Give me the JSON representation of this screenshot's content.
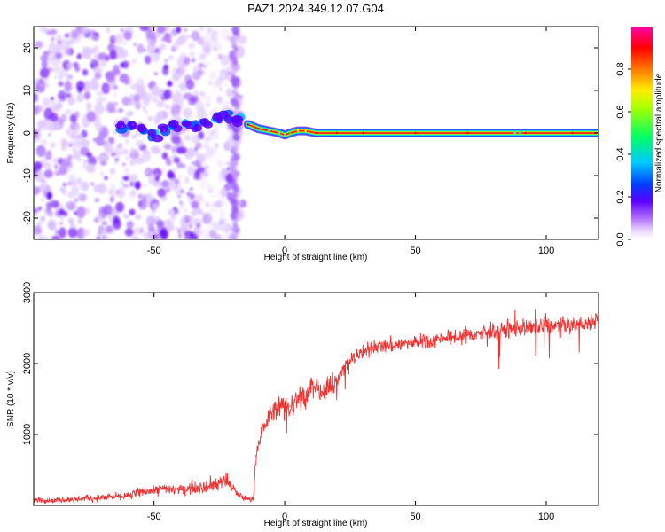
{
  "title": "PAZ1.2024.349.12.07.G04",
  "chart_data": [
    {
      "type": "heatmap",
      "xlabel": "Height of straight line (km)",
      "ylabel": "Frequency (Hz)",
      "xlim": [
        -96,
        120
      ],
      "ylim": [
        -25,
        25
      ],
      "xticks": [
        -50,
        0,
        50,
        100
      ],
      "xtick_labels": [
        "-50",
        "0",
        "50",
        "100"
      ],
      "yticks": [
        -20,
        -10,
        0,
        10,
        20
      ],
      "ytick_labels": [
        "-20",
        "-10",
        "0",
        "10",
        "20"
      ],
      "colorbar": {
        "label": "Normalized spectral amplitude",
        "ticks": [
          0.0,
          0.2,
          0.4,
          0.6,
          0.8
        ],
        "tick_labels": [
          "0.0",
          "0.2",
          "0.4",
          "0.6",
          "0.8"
        ],
        "colormap": "rainbow",
        "colors": [
          "#ffffff",
          "#e6d2ff",
          "#9b30ff",
          "#5a00ff",
          "#0050ff",
          "#00ffff",
          "#00ff00",
          "#ffff00",
          "#ff0000",
          "#ff00aa"
        ]
      },
      "signal_trace": {
        "x": [
          -62,
          -58,
          -54,
          -50,
          -46,
          -42,
          -38,
          -34,
          -30,
          -26,
          -22,
          -18,
          -14,
          -10,
          -6,
          -2,
          0,
          2,
          5,
          8,
          12,
          20,
          30,
          50,
          70,
          88,
          90,
          92,
          110,
          120
        ],
        "y": [
          1.5,
          2.0,
          1.0,
          -1.0,
          0.5,
          1.5,
          2.5,
          2.0,
          2.5,
          3.5,
          4.0,
          3.0,
          2.0,
          1.0,
          0.5,
          0.0,
          -0.5,
          0.0,
          0.5,
          0.5,
          0.0,
          0.0,
          0.0,
          0.0,
          0.0,
          0.0,
          0.0,
          0.0,
          0.0,
          0.0
        ],
        "amplitude": [
          0.25,
          0.25,
          0.3,
          0.3,
          0.25,
          0.3,
          0.3,
          0.3,
          0.35,
          0.35,
          0.35,
          0.3,
          0.35,
          0.45,
          0.5,
          0.55,
          0.6,
          0.65,
          0.75,
          0.8,
          0.85,
          0.9,
          0.9,
          0.9,
          0.9,
          0.6,
          0.6,
          0.9,
          0.9,
          0.9
        ]
      }
    },
    {
      "type": "line",
      "xlabel": "Height of straight line (km)",
      "ylabel": "SNR (10 * v/v)",
      "xlim": [
        -96,
        120
      ],
      "ylim": [
        0,
        3000
      ],
      "xticks": [
        -50,
        0,
        50,
        100
      ],
      "xtick_labels": [
        "-50",
        "0",
        "50",
        "100"
      ],
      "yticks": [
        1000,
        2000,
        3000
      ],
      "ytick_labels": [
        "1000",
        "2000",
        "3000"
      ],
      "line_color": "#ee3333",
      "series": [
        {
          "x": [
            -96,
            -90,
            -80,
            -70,
            -60,
            -55,
            -50,
            -45,
            -40,
            -35,
            -30,
            -25,
            -22,
            -20,
            -18,
            -16,
            -14,
            -12,
            -11,
            -10,
            -8,
            -6,
            -4,
            -2,
            0,
            2,
            4,
            6,
            8,
            10,
            12,
            14,
            16,
            18,
            20,
            22,
            25,
            30,
            35,
            40,
            50,
            60,
            70,
            80,
            90,
            100,
            110,
            120
          ],
          "y": [
            80,
            70,
            90,
            110,
            140,
            190,
            210,
            240,
            220,
            260,
            280,
            320,
            360,
            240,
            150,
            120,
            90,
            80,
            700,
            900,
            1100,
            1250,
            1350,
            1400,
            1350,
            1400,
            1450,
            1550,
            1500,
            1650,
            1700,
            1600,
            1700,
            1650,
            1750,
            1900,
            2050,
            2150,
            2250,
            2250,
            2300,
            2350,
            2400,
            2450,
            2500,
            2520,
            2540,
            2600
          ]
        }
      ]
    }
  ]
}
